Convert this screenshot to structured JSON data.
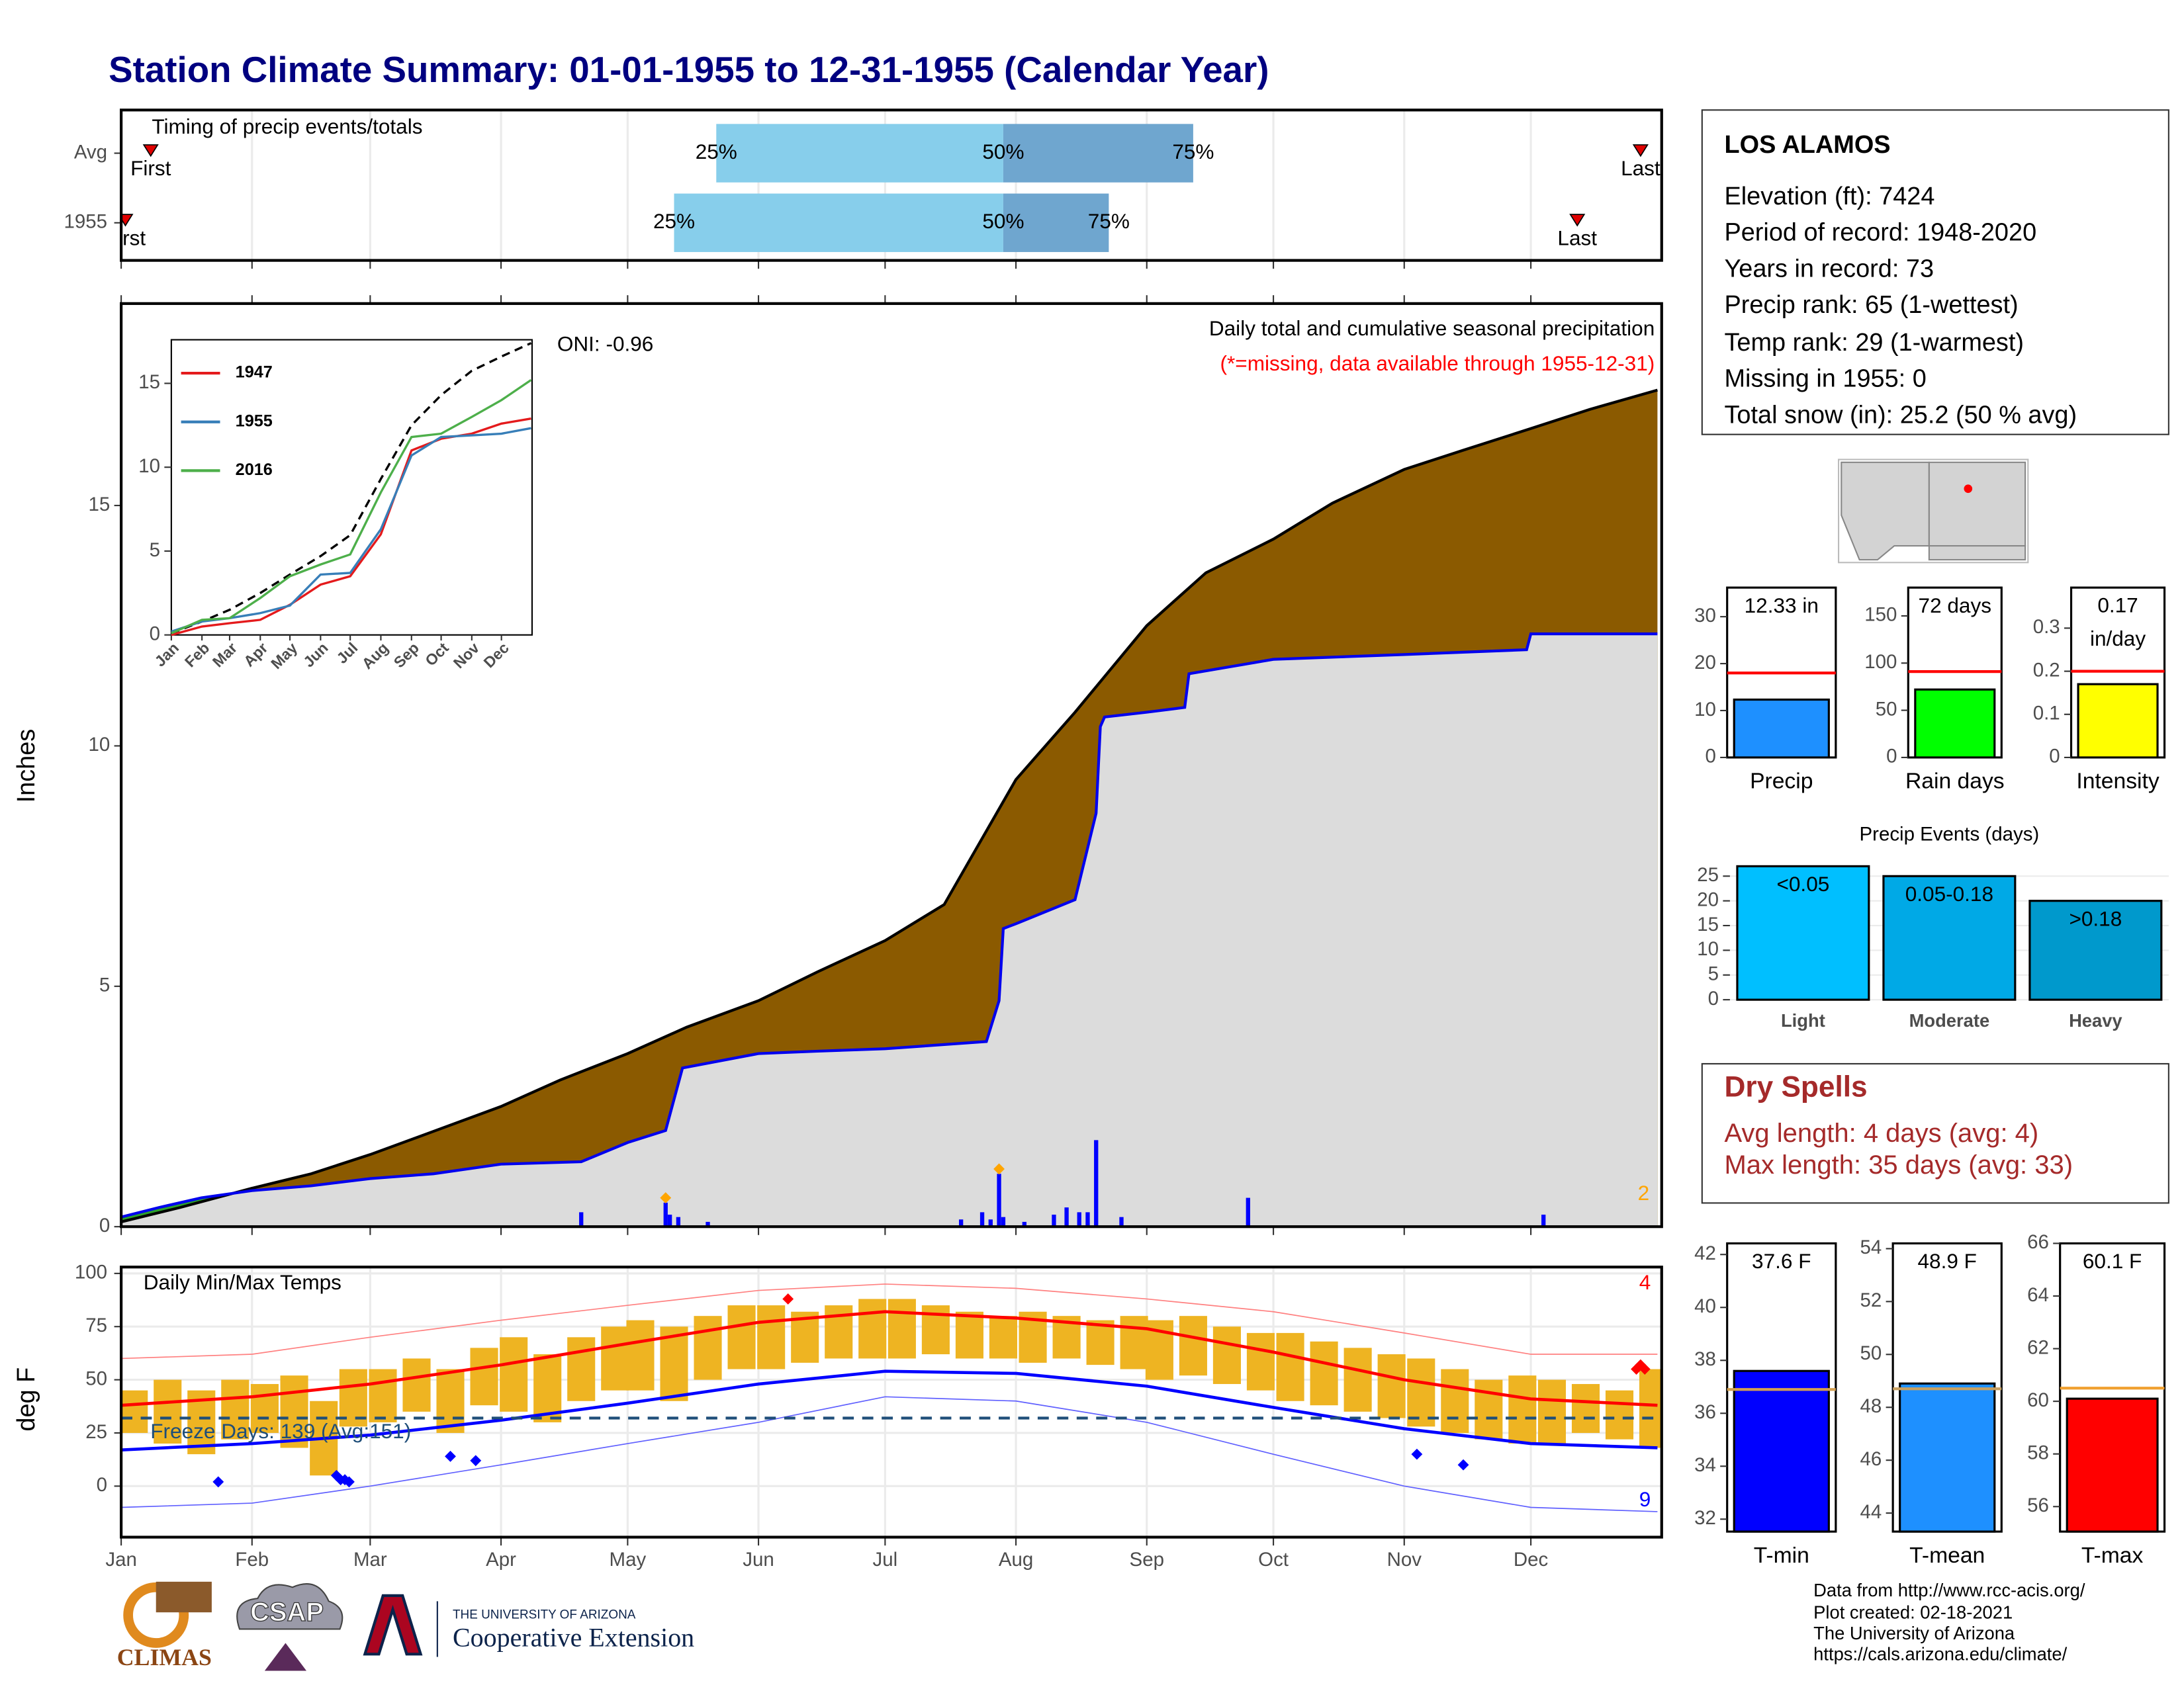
{
  "title": "Station Climate Summary: 01-01-1955 to 12-31-1955 (Calendar Year)",
  "station": {
    "name": "LOS ALAMOS",
    "lines": [
      "Elevation (ft): 7424",
      "Period of record: 1948-2020",
      "Years in record: 73",
      "Precip rank: 65 (1-wettest)",
      "Temp rank: 29 (1-warmest)",
      "Missing in 1955: 0",
      "Total snow (in): 25.2 (50 % avg)"
    ]
  },
  "dry_spells": {
    "title": "Dry Spells",
    "lines": [
      "Avg length: 4 days (avg: 4)",
      "Max length: 35 days (avg: 33)"
    ]
  },
  "footer": {
    "lines": [
      "Data from http://www.rcc-acis.org/",
      "Plot created: 02-18-2021",
      "The University of Arizona",
      "https://cals.arizona.edu/climate/"
    ]
  },
  "logos": {
    "climas": "CLIMAS",
    "csap": "CSAP",
    "ua": "THE UNIVERSITY OF ARIZONA",
    "extension": "Cooperative Extension"
  },
  "chart_data": [
    {
      "type": "timing",
      "title": "Timing of precip events/totals",
      "categories": [
        "Avg",
        "1955"
      ],
      "first": [
        8,
        2
      ],
      "last": [
        361,
        346
      ],
      "q25": [
        142,
        132
      ],
      "q50": [
        210,
        210
      ],
      "q75": [
        255,
        235
      ],
      "first_label": "First",
      "last_label": "Last",
      "q_labels": [
        "25%",
        "50%",
        "75%"
      ],
      "colors": [
        "#87ceeb",
        "#6fa6cf"
      ],
      "marker_color": "#e00000",
      "xlim": [
        1,
        366
      ],
      "xticks": [
        {
          "value": 1,
          "label": "Jan"
        },
        {
          "value": 32,
          "label": "Feb"
        },
        {
          "value": 60,
          "label": "Mar"
        },
        {
          "value": 91,
          "label": "Apr"
        },
        {
          "value": 121,
          "label": "May"
        },
        {
          "value": 152,
          "label": "Jun"
        },
        {
          "value": 182,
          "label": "Jul"
        },
        {
          "value": 213,
          "label": "Aug"
        },
        {
          "value": 244,
          "label": "Sep"
        },
        {
          "value": 274,
          "label": "Oct"
        },
        {
          "value": 305,
          "label": "Nov"
        },
        {
          "value": 335,
          "label": "Dec"
        }
      ]
    },
    {
      "type": "cumulative",
      "title": "Daily total and cumulative seasonal precipitation",
      "subtitle": "(*=missing, data available through 1955-12-31)",
      "y_label": "Inches",
      "oni": "ONI: -0.96",
      "corner_note": 2,
      "xlim": [
        1,
        366
      ],
      "ylim": [
        0,
        19.2
      ],
      "yticks": [
        0,
        5,
        10,
        15
      ],
      "xticks": [
        {
          "value": 1,
          "label": "Jan"
        },
        {
          "value": 32,
          "label": "Feb"
        },
        {
          "value": 60,
          "label": "Mar"
        },
        {
          "value": 91,
          "label": "Apr"
        },
        {
          "value": 121,
          "label": "May"
        },
        {
          "value": 152,
          "label": "Jun"
        },
        {
          "value": 182,
          "label": "Jul"
        },
        {
          "value": 213,
          "label": "Aug"
        },
        {
          "value": 244,
          "label": "Sep"
        },
        {
          "value": 274,
          "label": "Oct"
        },
        {
          "value": 305,
          "label": "Nov"
        },
        {
          "value": 335,
          "label": "Dec"
        }
      ],
      "series": [
        {
          "color": "#000000",
          "fill": "#8b5a00",
          "x": [
            1,
            15,
            32,
            46,
            60,
            74,
            91,
            105,
            121,
            135,
            152,
            166,
            182,
            196,
            213,
            227,
            244,
            258,
            274,
            288,
            305,
            319,
            335,
            349,
            365
          ],
          "values": [
            0.1,
            0.4,
            0.8,
            1.1,
            1.5,
            1.95,
            2.5,
            3.05,
            3.6,
            4.15,
            4.7,
            5.3,
            5.95,
            6.7,
            9.3,
            10.7,
            12.5,
            13.6,
            14.3,
            15.05,
            15.75,
            16.15,
            16.6,
            17.0,
            17.4
          ]
        },
        {
          "color": "#0000ee",
          "fill": "#dcdcdc",
          "fill_above": "#2ca02c",
          "x": [
            1,
            10,
            20,
            32,
            46,
            60,
            75,
            91,
            110,
            121,
            130,
            134,
            152,
            166,
            182,
            206,
            209,
            210,
            213,
            227,
            232,
            233,
            234,
            244,
            253,
            254,
            274,
            305,
            334,
            335,
            365
          ],
          "values": [
            0.2,
            0.4,
            0.6,
            0.75,
            0.85,
            1.0,
            1.1,
            1.3,
            1.35,
            1.75,
            2.0,
            3.3,
            3.6,
            3.65,
            3.7,
            3.85,
            4.7,
            6.2,
            6.3,
            6.8,
            8.6,
            10.4,
            10.6,
            10.7,
            10.8,
            11.5,
            11.8,
            11.9,
            12.0,
            12.33,
            12.33
          ]
        }
      ],
      "daily": {
        "color": "#0000ff",
        "x": [
          110,
          130,
          131,
          133,
          140,
          200,
          205,
          207,
          209,
          210,
          215,
          222,
          225,
          228,
          230,
          232,
          238,
          268,
          338
        ],
        "values": [
          0.3,
          0.5,
          0.25,
          0.2,
          0.1,
          0.15,
          0.3,
          0.15,
          1.1,
          0.2,
          0.1,
          0.25,
          0.4,
          0.3,
          0.3,
          1.8,
          0.2,
          0.6,
          0.25
        ]
      },
      "markers": {
        "color": "#ffa500",
        "x": [
          130,
          209
        ],
        "values": [
          0.6,
          1.2
        ]
      }
    },
    {
      "type": "line",
      "xlim": [
        1,
        366
      ],
      "ylim": [
        0,
        17.6
      ],
      "yticks": [
        0,
        5,
        10,
        15
      ],
      "xticks": [
        {
          "value": 1,
          "label": "Jan"
        },
        {
          "value": 32,
          "label": "Feb"
        },
        {
          "value": 60,
          "label": "Mar"
        },
        {
          "value": 91,
          "label": "Apr"
        },
        {
          "value": 121,
          "label": "May"
        },
        {
          "value": 152,
          "label": "Jun"
        },
        {
          "value": 182,
          "label": "Jul"
        },
        {
          "value": 213,
          "label": "Aug"
        },
        {
          "value": 244,
          "label": "Sep"
        },
        {
          "value": 274,
          "label": "Oct"
        },
        {
          "value": 305,
          "label": "Nov"
        },
        {
          "value": 335,
          "label": "Dec"
        }
      ],
      "x": [
        1,
        32,
        60,
        91,
        121,
        152,
        182,
        213,
        244,
        274,
        305,
        335,
        365
      ],
      "series": [
        {
          "name": "1947",
          "color": "#e41a1c",
          "values": [
            0,
            0.5,
            0.7,
            0.9,
            1.8,
            3.0,
            3.5,
            6.0,
            11.0,
            11.7,
            12.0,
            12.6,
            12.9
          ]
        },
        {
          "name": "1955",
          "color": "#377eb8",
          "values": [
            0.2,
            0.8,
            1.0,
            1.3,
            1.75,
            3.6,
            3.7,
            6.3,
            10.7,
            11.8,
            11.9,
            12.0,
            12.33
          ]
        },
        {
          "name": "2016",
          "color": "#4daf4a",
          "values": [
            0.1,
            0.9,
            1.0,
            2.2,
            3.5,
            4.2,
            4.8,
            8.5,
            11.8,
            12.0,
            13.0,
            14.0,
            15.2
          ]
        }
      ],
      "average": {
        "color": "#000000",
        "values": [
          0.1,
          0.8,
          1.5,
          2.5,
          3.6,
          4.7,
          5.95,
          9.3,
          12.5,
          14.3,
          15.75,
          16.6,
          17.4
        ]
      }
    },
    {
      "type": "temperature",
      "title": "Daily Min/Max Temps",
      "y_label": "deg F",
      "xlim": [
        1,
        366
      ],
      "ylim": [
        -24,
        103
      ],
      "yticks": [
        0,
        25,
        50,
        75,
        100
      ],
      "xticks": [
        {
          "value": 1,
          "label": "Jan"
        },
        {
          "value": 32,
          "label": "Feb"
        },
        {
          "value": 60,
          "label": "Mar"
        },
        {
          "value": 91,
          "label": "Apr"
        },
        {
          "value": 121,
          "label": "May"
        },
        {
          "value": 152,
          "label": "Jun"
        },
        {
          "value": 182,
          "label": "Jul"
        },
        {
          "value": 213,
          "label": "Aug"
        },
        {
          "value": 244,
          "label": "Sep"
        },
        {
          "value": 274,
          "label": "Oct"
        },
        {
          "value": 305,
          "label": "Nov"
        },
        {
          "value": 335,
          "label": "Dec"
        }
      ],
      "bars": {
        "color": "#eeb422",
        "x": [
          4,
          12,
          20,
          28,
          35,
          42,
          49,
          56,
          63,
          71,
          79,
          87,
          94,
          102,
          110,
          118,
          124,
          132,
          140,
          148,
          155,
          163,
          171,
          179,
          186,
          194,
          202,
          210,
          217,
          225,
          233,
          241,
          247,
          255,
          263,
          271,
          278,
          286,
          294,
          302,
          309,
          317,
          325,
          333,
          340,
          348,
          356,
          364
        ],
        "low": [
          25,
          20,
          15,
          22,
          25,
          18,
          5,
          28,
          30,
          35,
          25,
          38,
          35,
          30,
          40,
          45,
          45,
          40,
          50,
          55,
          55,
          58,
          60,
          60,
          60,
          62,
          60,
          60,
          58,
          60,
          57,
          55,
          50,
          52,
          48,
          45,
          40,
          38,
          35,
          32,
          28,
          25,
          22,
          20,
          20,
          25,
          22,
          18
        ],
        "high": [
          45,
          50,
          45,
          50,
          48,
          52,
          40,
          55,
          55,
          60,
          55,
          65,
          70,
          62,
          70,
          75,
          78,
          75,
          80,
          85,
          85,
          82,
          85,
          88,
          88,
          85,
          82,
          80,
          82,
          80,
          78,
          80,
          78,
          80,
          75,
          72,
          72,
          68,
          65,
          62,
          60,
          55,
          50,
          52,
          50,
          48,
          45,
          55
        ]
      },
      "x": [
        1,
        32,
        60,
        91,
        121,
        152,
        182,
        213,
        244,
        274,
        305,
        335,
        365
      ],
      "series": [
        {
          "color": "#ff8080",
          "width": 0.8,
          "values": [
            60,
            62,
            70,
            78,
            85,
            92,
            95,
            93,
            88,
            82,
            72,
            62,
            62
          ]
        },
        {
          "color": "#6060ff",
          "width": 0.8,
          "values": [
            -10,
            -8,
            0,
            10,
            20,
            30,
            42,
            40,
            30,
            15,
            0,
            -10,
            -12
          ]
        },
        {
          "color": "#ff0000",
          "width": 2.2,
          "values": [
            38,
            42,
            48,
            57,
            67,
            77,
            82,
            79,
            74,
            63,
            50,
            41,
            38
          ]
        },
        {
          "color": "#0000ff",
          "width": 2.2,
          "values": [
            17,
            20,
            24,
            31,
            39,
            48,
            54,
            53,
            47,
            37,
            27,
            20,
            18
          ]
        }
      ],
      "freeze": {
        "value": 32,
        "color": "#1f4e79",
        "label": "Freeze Days: 139 (Avg:151)"
      },
      "record_highs": {
        "color": "#ff0000",
        "x": [
          159,
          360,
          361,
          362
        ],
        "values": [
          88,
          55,
          57,
          55
        ],
        "count": 4
      },
      "record_lows": {
        "color": "#0000ff",
        "x": [
          24,
          52,
          53,
          54,
          55,
          79,
          85,
          308,
          319
        ],
        "values": [
          2,
          5,
          3,
          3,
          2,
          14,
          12,
          15,
          10
        ],
        "count": 9
      }
    },
    {
      "type": "gauge",
      "categories": [
        "Precip"
      ],
      "values": [
        12.33
      ],
      "value_labels": [
        "12.33 in"
      ],
      "average": 18,
      "color": "#1e90ff",
      "avg_color": "#ff0000",
      "ylim": [
        0,
        36.2
      ],
      "yticks": [
        0,
        10,
        20,
        30
      ]
    },
    {
      "type": "gauge",
      "categories": [
        "Rain days"
      ],
      "values": [
        72
      ],
      "value_labels": [
        "72 days"
      ],
      "average": 91,
      "color": "#00ff00",
      "avg_color": "#ff0000",
      "ylim": [
        0,
        180
      ],
      "yticks": [
        0,
        50,
        100,
        150
      ]
    },
    {
      "type": "gauge",
      "categories": [
        "Intensity"
      ],
      "values": [
        0.17
      ],
      "value_labels": [
        "0.17 in/day"
      ],
      "average": 0.2,
      "color": "#ffff00",
      "avg_color": "#ff0000",
      "ylim": [
        0,
        0.394
      ],
      "yticks": [
        0.0,
        0.1,
        0.2,
        0.3
      ]
    },
    {
      "type": "bar",
      "title": "Precip Events (days)",
      "categories": [
        "Light",
        "Moderate",
        "Heavy"
      ],
      "values": [
        27,
        25,
        20
      ],
      "bin_labels": [
        "<0.05",
        "0.05-0.18",
        ">0.18"
      ],
      "colors": [
        "#00bfff",
        "#00a9e6",
        "#0099cc"
      ],
      "ylim": [
        0,
        27.6
      ],
      "yticks": [
        0,
        5,
        10,
        15,
        20,
        25
      ]
    },
    {
      "type": "gauge",
      "categories": [
        "T-min"
      ],
      "values": [
        37.6
      ],
      "value_labels": [
        "37.6 F"
      ],
      "average": 36.9,
      "color": "#0000ff",
      "avg_color": "#d4a050",
      "ylim": [
        31.53,
        42.42
      ],
      "yticks": [
        32,
        34,
        36,
        38,
        40,
        42
      ]
    },
    {
      "type": "gauge",
      "categories": [
        "T-mean"
      ],
      "values": [
        48.9
      ],
      "value_labels": [
        "48.9 F"
      ],
      "average": 48.7,
      "color": "#1e90ff",
      "avg_color": "#c8a060",
      "ylim": [
        43.3,
        54.2
      ],
      "yticks": [
        44,
        46,
        48,
        50,
        52,
        54
      ]
    },
    {
      "type": "gauge",
      "categories": [
        "T-max"
      ],
      "values": [
        60.1
      ],
      "value_labels": [
        "60.1 F"
      ],
      "average": 60.5,
      "color": "#ff0000",
      "avg_color": "#f0a030",
      "ylim": [
        55.05,
        66
      ],
      "yticks": [
        56,
        58,
        60,
        62,
        64,
        66
      ]
    }
  ]
}
